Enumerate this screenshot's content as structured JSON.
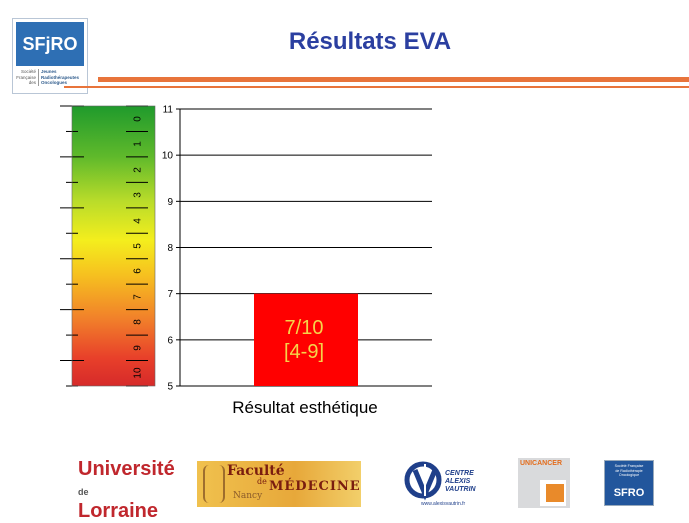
{
  "header": {
    "title": "Résultats EVA",
    "logo": {
      "mark": "SFjRO",
      "left_lines": [
        "Société",
        "Française",
        "des"
      ],
      "right_lines": [
        "Jeunes",
        "Radiothérapeutes",
        "Oncologues"
      ]
    }
  },
  "scale": {
    "labels": [
      "0",
      "1",
      "2",
      "3",
      "4",
      "5",
      "6",
      "7",
      "8",
      "9",
      "10"
    ],
    "colors": {
      "top": "#1f9a2c",
      "middle": "#f4ee1d",
      "bottom": "#d62a2a"
    }
  },
  "chart_data": {
    "type": "bar",
    "categories": [
      "Résultat esthétique"
    ],
    "values": [
      7
    ],
    "data_label": [
      "7/10",
      "[4-9]"
    ],
    "ylim": [
      5,
      11
    ],
    "yticks": [
      5,
      6,
      7,
      8,
      9,
      10,
      11
    ],
    "grid": true,
    "bar_color": "#ff0000",
    "label_color": "#f5d44a",
    "title": "",
    "xlabel": "",
    "ylabel": ""
  },
  "footer": {
    "logos": [
      {
        "name": "universite-de-lorraine",
        "lines": [
          "Université",
          "de",
          "Lorraine"
        ]
      },
      {
        "name": "faculte-de-medecine-nancy",
        "lines": [
          "Faculté",
          "de",
          "MÉDECINE",
          "Nancy"
        ]
      },
      {
        "name": "centre-alexis-vautrin",
        "lines": [
          "CENTRE",
          "ALEXIS",
          "VAUTRIN",
          "www.alexisvautrin.fr"
        ]
      },
      {
        "name": "unicancer",
        "lines": [
          "UNICANCER"
        ]
      },
      {
        "name": "sfro",
        "lines": [
          "Société Française",
          "de Radiothérapie",
          "Oncologique",
          "SFRO"
        ]
      }
    ]
  }
}
